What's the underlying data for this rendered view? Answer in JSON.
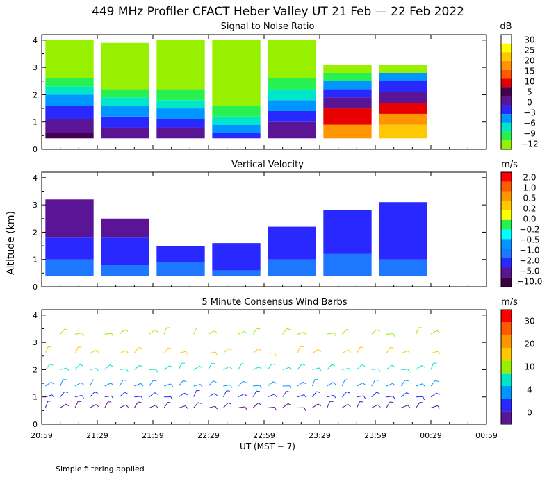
{
  "title": "449 MHz Profiler CFACT Heber Valley UT 21 Feb — 22 Feb 2022",
  "ylabel": "Altitude (km)",
  "xlabel": "UT  (MST − 7)",
  "xticks": [
    "20:59",
    "21:29",
    "21:59",
    "22:29",
    "22:59",
    "23:29",
    "23:59",
    "00:29",
    "00:59"
  ],
  "yticks": [
    "0",
    "1",
    "2",
    "3",
    "4"
  ],
  "footnote": "Simple filtering applied",
  "chart_data": [
    {
      "type": "heatmap",
      "title": "Signal to Noise Ratio",
      "unit": "dB",
      "colorbar": {
        "labels": [
          "30",
          "25",
          "20",
          "15",
          "10",
          "5",
          "0",
          "−3",
          "−6",
          "−9",
          "−12"
        ],
        "colors": [
          "#ffffff",
          "#ffff00",
          "#ffc800",
          "#ff9600",
          "#ff5a00",
          "#e60000",
          "#460050",
          "#5a1496",
          "#2828ff",
          "#0096ff",
          "#00e6c8",
          "#28f050",
          "#96f000"
        ]
      },
      "xlim": [
        0,
        240
      ],
      "ylim": [
        0,
        4.2
      ],
      "segments": [
        {
          "t0": 2,
          "t1": 28,
          "layers": [
            {
              "top": 0.6,
              "color": "#460050"
            },
            {
              "top": 1.1,
              "color": "#5a1496"
            },
            {
              "top": 1.6,
              "color": "#2828ff"
            },
            {
              "top": 2.0,
              "color": "#0096ff"
            },
            {
              "top": 2.3,
              "color": "#00e6c8"
            },
            {
              "top": 2.6,
              "color": "#28f050"
            },
            {
              "top": 4.0,
              "color": "#96f000"
            }
          ]
        },
        {
          "t0": 32,
          "t1": 58,
          "layers": [
            {
              "top": 0.8,
              "color": "#5a1496"
            },
            {
              "top": 1.2,
              "color": "#2828ff"
            },
            {
              "top": 1.6,
              "color": "#0096ff"
            },
            {
              "top": 1.9,
              "color": "#00e6c8"
            },
            {
              "top": 2.2,
              "color": "#28f050"
            },
            {
              "top": 3.9,
              "color": "#96f000"
            }
          ]
        },
        {
          "t0": 62,
          "t1": 88,
          "layers": [
            {
              "top": 0.8,
              "color": "#5a1496"
            },
            {
              "top": 1.1,
              "color": "#2828ff"
            },
            {
              "top": 1.5,
              "color": "#0096ff"
            },
            {
              "top": 1.8,
              "color": "#00e6c8"
            },
            {
              "top": 2.2,
              "color": "#28f050"
            },
            {
              "top": 4.0,
              "color": "#96f000"
            }
          ]
        },
        {
          "t0": 92,
          "t1": 118,
          "layers": [
            {
              "top": 0.6,
              "color": "#2828ff"
            },
            {
              "top": 0.9,
              "color": "#0096ff"
            },
            {
              "top": 1.2,
              "color": "#00e6c8"
            },
            {
              "top": 1.6,
              "color": "#28f050"
            },
            {
              "top": 4.0,
              "color": "#96f000"
            }
          ]
        },
        {
          "t0": 122,
          "t1": 148,
          "layers": [
            {
              "top": 1.0,
              "color": "#5a1496"
            },
            {
              "top": 1.4,
              "color": "#2828ff"
            },
            {
              "top": 1.8,
              "color": "#0096ff"
            },
            {
              "top": 2.2,
              "color": "#00e6c8"
            },
            {
              "top": 2.6,
              "color": "#28f050"
            },
            {
              "top": 4.0,
              "color": "#96f000"
            }
          ]
        },
        {
          "t0": 152,
          "t1": 178,
          "layers": [
            {
              "top": 0.9,
              "color": "#ff9600"
            },
            {
              "top": 1.5,
              "color": "#e60000"
            },
            {
              "top": 1.9,
              "color": "#5a1496"
            },
            {
              "top": 2.2,
              "color": "#2828ff"
            },
            {
              "top": 2.5,
              "color": "#0096ff"
            },
            {
              "top": 2.8,
              "color": "#28f050"
            },
            {
              "top": 3.1,
              "color": "#96f000"
            }
          ]
        },
        {
          "t0": 182,
          "t1": 208,
          "layers": [
            {
              "top": 0.9,
              "color": "#ffc800"
            },
            {
              "top": 1.3,
              "color": "#ff9600"
            },
            {
              "top": 1.7,
              "color": "#e60000"
            },
            {
              "top": 2.1,
              "color": "#5a1496"
            },
            {
              "top": 2.5,
              "color": "#2828ff"
            },
            {
              "top": 2.8,
              "color": "#0096ff"
            },
            {
              "top": 3.1,
              "color": "#96f000"
            }
          ]
        }
      ]
    },
    {
      "type": "heatmap",
      "title": "Vertical Velocity",
      "unit": "m/s",
      "colorbar": {
        "labels": [
          "2.0",
          "1.0",
          "0.5",
          "0.2",
          "0.0",
          "−0.2",
          "−0.5",
          "−1.0",
          "−2.0",
          "−5.0",
          "−10.0"
        ],
        "colors": [
          "#ff0000",
          "#ff5a00",
          "#ff9600",
          "#ffc800",
          "#ffff00",
          "#28f050",
          "#00ffff",
          "#0096ff",
          "#1e78ff",
          "#2828ff",
          "#5a1496",
          "#3c0046"
        ]
      },
      "xlim": [
        0,
        240
      ],
      "ylim": [
        0,
        4.2
      ],
      "segments": [
        {
          "t0": 2,
          "t1": 28,
          "layers": [
            {
              "top": 1.0,
              "color": "#1e78ff"
            },
            {
              "top": 1.8,
              "color": "#2828ff"
            },
            {
              "top": 3.2,
              "color": "#5a1496"
            }
          ]
        },
        {
          "t0": 32,
          "t1": 58,
          "layers": [
            {
              "top": 0.8,
              "color": "#1e78ff"
            },
            {
              "top": 1.8,
              "color": "#2828ff"
            },
            {
              "top": 2.5,
              "color": "#5a1496"
            }
          ]
        },
        {
          "t0": 62,
          "t1": 88,
          "layers": [
            {
              "top": 0.9,
              "color": "#1e78ff"
            },
            {
              "top": 1.5,
              "color": "#2828ff"
            }
          ]
        },
        {
          "t0": 92,
          "t1": 118,
          "layers": [
            {
              "top": 0.6,
              "color": "#1e78ff"
            },
            {
              "top": 1.6,
              "color": "#2828ff"
            }
          ]
        },
        {
          "t0": 122,
          "t1": 148,
          "layers": [
            {
              "top": 1.0,
              "color": "#1e78ff"
            },
            {
              "top": 2.2,
              "color": "#2828ff"
            }
          ]
        },
        {
          "t0": 152,
          "t1": 178,
          "layers": [
            {
              "top": 1.2,
              "color": "#1e78ff"
            },
            {
              "top": 2.8,
              "color": "#2828ff"
            }
          ]
        },
        {
          "t0": 182,
          "t1": 208,
          "layers": [
            {
              "top": 1.0,
              "color": "#1e78ff"
            },
            {
              "top": 3.1,
              "color": "#2828ff"
            }
          ]
        }
      ]
    },
    {
      "type": "wind_barbs",
      "title": "5 Minute Consensus Wind Barbs",
      "unit": "m/s",
      "colorbar": {
        "labels": [
          "30",
          "20",
          "10",
          "4",
          "0"
        ],
        "colors": [
          "#ff0000",
          "#ff5a00",
          "#ff9600",
          "#ffc800",
          "#96f000",
          "#00e6c8",
          "#0096ff",
          "#2828ff",
          "#5a1496"
        ]
      },
      "xlim": [
        0,
        240
      ],
      "ylim": [
        0,
        4.2
      ],
      "levels": [
        {
          "alt": 0.6,
          "speed": 3,
          "color": "#5a1496"
        },
        {
          "alt": 1.0,
          "speed": 6,
          "color": "#2828ff"
        },
        {
          "alt": 1.4,
          "speed": 8,
          "color": "#0096ff"
        },
        {
          "alt": 2.0,
          "speed": 12,
          "color": "#00e6c8"
        },
        {
          "alt": 2.6,
          "speed": 16,
          "color": "#ffc800"
        },
        {
          "alt": 3.3,
          "speed": 22,
          "color": "#96f000"
        }
      ],
      "time_steps": [
        2,
        10,
        18,
        26,
        34,
        42,
        50,
        58,
        66,
        74,
        82,
        90,
        98,
        106,
        114,
        122,
        130,
        138,
        146,
        154,
        162,
        170,
        178,
        186,
        194,
        202,
        210
      ]
    }
  ]
}
